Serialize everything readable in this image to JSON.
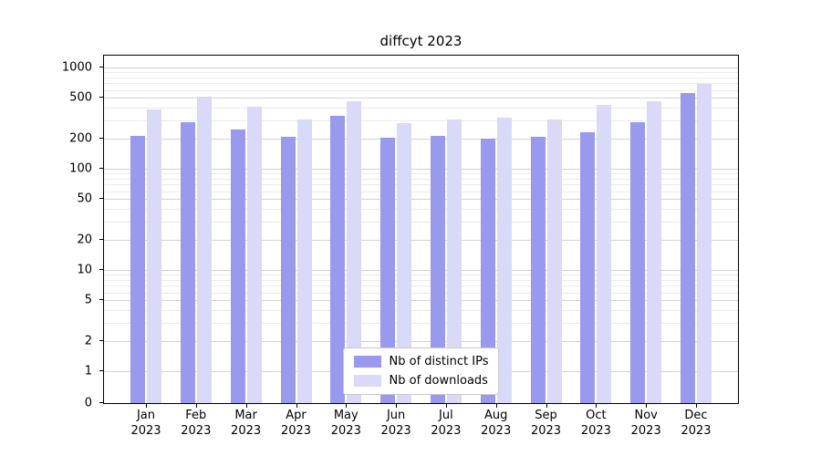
{
  "title": "diffcyt 2023",
  "chart_data": {
    "type": "bar",
    "title": "diffcyt 2023",
    "y_scale": "log",
    "grid": true,
    "legend_position": "bottom-center",
    "y_ticks": [
      0,
      1,
      2,
      5,
      10,
      20,
      50,
      100,
      200,
      500,
      1000
    ],
    "ylim": [
      0,
      1000
    ],
    "categories": [
      "Jan",
      "Feb",
      "Mar",
      "Apr",
      "May",
      "Jun",
      "Jul",
      "Aug",
      "Sep",
      "Oct",
      "Nov",
      "Dec"
    ],
    "year": "2023",
    "series": [
      {
        "name": "Nb of distinct IPs",
        "color": "#9999ee",
        "values": [
          212,
          289,
          242,
          206,
          330,
          201,
          212,
          198,
          206,
          231,
          291,
          557
        ]
      },
      {
        "name": "Nb of downloads",
        "color": "#d9d9f8",
        "values": [
          388,
          519,
          413,
          309,
          466,
          281,
          304,
          320,
          305,
          428,
          466,
          693
        ]
      }
    ]
  }
}
